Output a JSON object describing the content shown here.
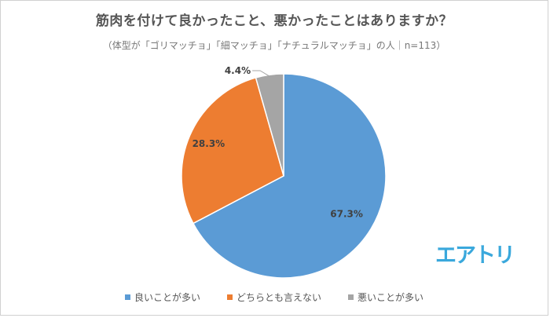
{
  "title": "筋肉を付けて良かったこと、悪かったことはありますか？",
  "subtitle": "（体型が「ゴリマッチョ」「細マッチョ」「ナチュラルマッチョ」の人｜n=113）",
  "logo": {
    "text": "エアトリ",
    "color": "#3aa8dc"
  },
  "chart_data": {
    "type": "pie",
    "categories": [
      "良いことが多い",
      "どちらとも言えない",
      "悪いことが多い"
    ],
    "values": [
      67.3,
      28.3,
      4.4
    ],
    "labels": [
      "67.3%",
      "28.3%",
      "4.4%"
    ],
    "colors": [
      "#5b9bd5",
      "#ed7d31",
      "#a5a5a5"
    ],
    "start_angle_deg": 0,
    "direction": "clockwise",
    "legend_position": "bottom"
  }
}
